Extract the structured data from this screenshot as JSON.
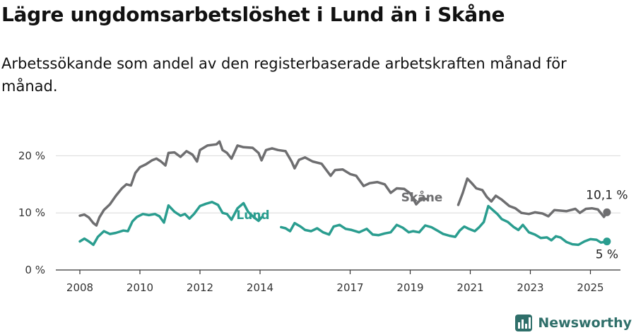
{
  "header": {
    "title": "Lägre ungdomsarbetslöshet i Lund än i Skåne",
    "subtitle": "Arbetssökande som andel av den registerbaserade arbetskraften månad för månad."
  },
  "brand": {
    "name": "Newsworthy"
  },
  "chart_data": {
    "type": "line",
    "title": "Lägre ungdomsarbetslöshet i Lund än i Skåne",
    "subtitle": "Arbetssökande som andel av den registerbaserade arbetskraften månad för månad.",
    "x_ticks": [
      2008,
      2010,
      2012,
      2014,
      2017,
      2019,
      2021,
      2023,
      2025
    ],
    "y_ticks": [
      0,
      10,
      20
    ],
    "y_tick_labels": [
      "0 %",
      "10 %",
      "20 %"
    ],
    "xlim": [
      2007.2,
      2026.0
    ],
    "ylim": [
      0,
      25
    ],
    "grid": "horizontal",
    "series": [
      {
        "name": "Skåne",
        "color": "#6e6e70",
        "end_label": "10,1 %",
        "points": [
          [
            2008.0,
            9.5
          ],
          [
            2008.15,
            9.7
          ],
          [
            2008.3,
            9.2
          ],
          [
            2008.45,
            8.2
          ],
          [
            2008.55,
            7.8
          ],
          [
            2008.65,
            9.2
          ],
          [
            2008.8,
            10.5
          ],
          [
            2009.0,
            11.5
          ],
          [
            2009.2,
            13.0
          ],
          [
            2009.4,
            14.3
          ],
          [
            2009.55,
            15.0
          ],
          [
            2009.7,
            14.8
          ],
          [
            2009.85,
            17.0
          ],
          [
            2010.0,
            18.0
          ],
          [
            2010.2,
            18.5
          ],
          [
            2010.4,
            19.2
          ],
          [
            2010.55,
            19.5
          ],
          [
            2010.7,
            19.0
          ],
          [
            2010.85,
            18.3
          ],
          [
            2010.95,
            20.5
          ],
          [
            2011.15,
            20.6
          ],
          [
            2011.35,
            19.8
          ],
          [
            2011.55,
            20.8
          ],
          [
            2011.75,
            20.2
          ],
          [
            2011.9,
            19.0
          ],
          [
            2012.0,
            21.0
          ],
          [
            2012.25,
            21.8
          ],
          [
            2012.55,
            22.0
          ],
          [
            2012.65,
            22.5
          ],
          [
            2012.75,
            21.0
          ],
          [
            2012.9,
            20.5
          ],
          [
            2013.05,
            19.5
          ],
          [
            2013.25,
            21.8
          ],
          [
            2013.45,
            21.5
          ],
          [
            2013.75,
            21.4
          ],
          [
            2013.95,
            20.5
          ],
          [
            2014.05,
            19.2
          ],
          [
            2014.2,
            21.0
          ],
          [
            2014.4,
            21.3
          ],
          [
            2014.6,
            21.0
          ],
          [
            2014.85,
            20.8
          ],
          [
            2015.05,
            19.0
          ],
          [
            2015.15,
            17.8
          ],
          [
            2015.3,
            19.3
          ],
          [
            2015.5,
            19.7
          ],
          [
            2015.75,
            19.0
          ],
          [
            2016.05,
            18.6
          ],
          [
            2016.35,
            16.5
          ],
          [
            2016.5,
            17.5
          ],
          [
            2016.75,
            17.6
          ],
          [
            2017.0,
            16.8
          ],
          [
            2017.2,
            16.5
          ],
          [
            2017.45,
            14.7
          ],
          [
            2017.65,
            15.2
          ],
          [
            2017.9,
            15.4
          ],
          [
            2018.15,
            15.0
          ],
          [
            2018.35,
            13.5
          ],
          [
            2018.55,
            14.3
          ],
          [
            2018.8,
            14.2
          ],
          [
            2019.0,
            13.4
          ],
          [
            2019.2,
            11.5
          ],
          [
            2019.4,
            12.6
          ],
          [
            2019.55,
            12.4
          ]
        ],
        "points_after_label": [
          [
            2020.6,
            11.4
          ],
          [
            2020.75,
            13.5
          ],
          [
            2020.9,
            16.0
          ],
          [
            2021.05,
            15.2
          ],
          [
            2021.2,
            14.3
          ],
          [
            2021.4,
            14.0
          ],
          [
            2021.55,
            12.8
          ],
          [
            2021.7,
            12.0
          ],
          [
            2021.85,
            13.0
          ],
          [
            2022.05,
            12.3
          ],
          [
            2022.3,
            11.2
          ],
          [
            2022.5,
            10.8
          ],
          [
            2022.7,
            10.0
          ],
          [
            2022.95,
            9.8
          ],
          [
            2023.15,
            10.1
          ],
          [
            2023.4,
            9.9
          ],
          [
            2023.6,
            9.4
          ],
          [
            2023.8,
            10.5
          ],
          [
            2024.0,
            10.4
          ],
          [
            2024.2,
            10.3
          ],
          [
            2024.5,
            10.7
          ],
          [
            2024.65,
            10.0
          ],
          [
            2024.85,
            10.7
          ],
          [
            2025.05,
            10.8
          ],
          [
            2025.25,
            10.6
          ],
          [
            2025.45,
            9.3
          ],
          [
            2025.55,
            10.1
          ]
        ]
      },
      {
        "name": "Lund",
        "color": "#2a9d8f",
        "end_label": "5 %",
        "points_before_label": [
          [
            2008.0,
            5.0
          ],
          [
            2008.15,
            5.5
          ],
          [
            2008.3,
            5.0
          ],
          [
            2008.45,
            4.4
          ],
          [
            2008.6,
            5.8
          ],
          [
            2008.8,
            6.8
          ],
          [
            2009.0,
            6.3
          ],
          [
            2009.2,
            6.5
          ],
          [
            2009.45,
            6.9
          ],
          [
            2009.6,
            6.8
          ],
          [
            2009.75,
            8.5
          ],
          [
            2009.9,
            9.3
          ],
          [
            2010.1,
            9.8
          ],
          [
            2010.3,
            9.6
          ],
          [
            2010.5,
            9.8
          ],
          [
            2010.65,
            9.4
          ],
          [
            2010.8,
            8.3
          ],
          [
            2010.95,
            11.3
          ],
          [
            2011.15,
            10.2
          ],
          [
            2011.35,
            9.5
          ],
          [
            2011.5,
            9.8
          ],
          [
            2011.65,
            9.0
          ],
          [
            2011.8,
            9.8
          ],
          [
            2012.0,
            11.2
          ],
          [
            2012.2,
            11.6
          ],
          [
            2012.4,
            11.9
          ],
          [
            2012.6,
            11.4
          ],
          [
            2012.75,
            10.0
          ],
          [
            2012.9,
            9.8
          ],
          [
            2013.05,
            8.8
          ],
          [
            2013.25,
            10.8
          ],
          [
            2013.45,
            11.7
          ],
          [
            2013.6,
            10.2
          ],
          [
            2013.8,
            9.2
          ],
          [
            2013.95,
            8.6
          ],
          [
            2014.05,
            9.2
          ]
        ],
        "points": [
          [
            2014.7,
            7.5
          ],
          [
            2014.85,
            7.3
          ],
          [
            2015.0,
            6.8
          ],
          [
            2015.15,
            8.2
          ],
          [
            2015.35,
            7.6
          ],
          [
            2015.5,
            7.0
          ],
          [
            2015.7,
            6.8
          ],
          [
            2015.9,
            7.3
          ],
          [
            2016.1,
            6.6
          ],
          [
            2016.3,
            6.2
          ],
          [
            2016.45,
            7.6
          ],
          [
            2016.65,
            7.9
          ],
          [
            2016.85,
            7.2
          ],
          [
            2017.05,
            7.0
          ],
          [
            2017.3,
            6.6
          ],
          [
            2017.55,
            7.2
          ],
          [
            2017.75,
            6.2
          ],
          [
            2017.95,
            6.1
          ],
          [
            2018.15,
            6.4
          ],
          [
            2018.35,
            6.6
          ],
          [
            2018.55,
            7.9
          ],
          [
            2018.75,
            7.4
          ],
          [
            2018.95,
            6.6
          ],
          [
            2019.1,
            6.8
          ],
          [
            2019.3,
            6.6
          ],
          [
            2019.5,
            7.8
          ],
          [
            2019.7,
            7.5
          ],
          [
            2019.9,
            6.9
          ],
          [
            2020.1,
            6.3
          ],
          [
            2020.3,
            6.0
          ],
          [
            2020.5,
            5.8
          ],
          [
            2020.65,
            6.9
          ],
          [
            2020.8,
            7.6
          ],
          [
            2020.95,
            7.2
          ],
          [
            2021.15,
            6.8
          ],
          [
            2021.3,
            7.5
          ],
          [
            2021.45,
            8.4
          ],
          [
            2021.6,
            11.2
          ],
          [
            2021.75,
            10.5
          ],
          [
            2021.9,
            9.8
          ],
          [
            2022.05,
            8.9
          ],
          [
            2022.25,
            8.4
          ],
          [
            2022.45,
            7.5
          ],
          [
            2022.6,
            7.0
          ],
          [
            2022.75,
            7.9
          ],
          [
            2022.95,
            6.6
          ],
          [
            2023.15,
            6.2
          ],
          [
            2023.35,
            5.6
          ],
          [
            2023.55,
            5.7
          ],
          [
            2023.7,
            5.2
          ],
          [
            2023.85,
            5.9
          ],
          [
            2024.0,
            5.7
          ],
          [
            2024.2,
            4.9
          ],
          [
            2024.4,
            4.5
          ],
          [
            2024.6,
            4.4
          ],
          [
            2024.8,
            5.0
          ],
          [
            2025.0,
            5.4
          ],
          [
            2025.2,
            5.3
          ],
          [
            2025.35,
            4.8
          ],
          [
            2025.55,
            5.0
          ]
        ]
      }
    ]
  }
}
